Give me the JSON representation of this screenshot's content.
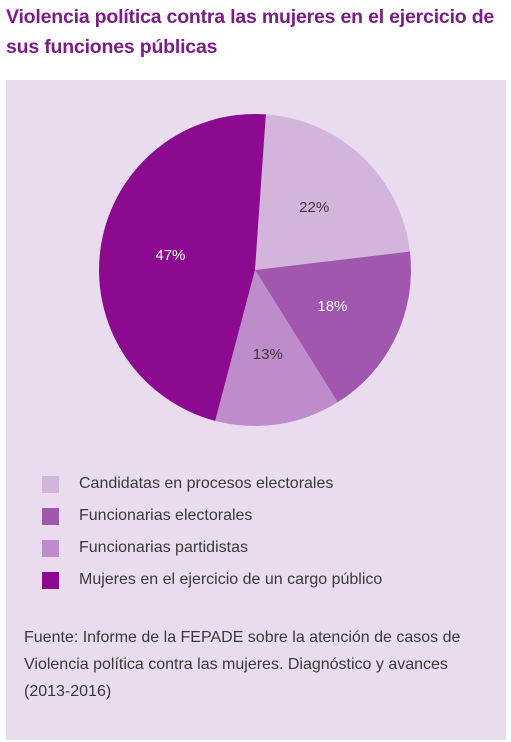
{
  "title": "Violencia política contra las mujeres en el ejercicio de sus funciones públicas",
  "chart_data": {
    "type": "pie",
    "title": "Violencia política contra las mujeres en el ejercicio de sus funciones públicas",
    "legend_position": "bottom",
    "slices": [
      {
        "label": "Candidatas en procesos electorales",
        "value": 22,
        "value_label": "22%",
        "color": "#d3b5dc",
        "text_color": "#3a3a3a"
      },
      {
        "label": "Funcionarias electorales",
        "value": 18,
        "value_label": "18%",
        "color": "#a057ad",
        "text_color": "#ffffff"
      },
      {
        "label": "Funcionarias partidistas",
        "value": 13,
        "value_label": "13%",
        "color": "#bf8ccb",
        "text_color": "#3a3a3a"
      },
      {
        "label": "Mujeres en el ejercicio de un cargo público",
        "value": 47,
        "value_label": "47%",
        "color": "#8b0a8f",
        "text_color": "#ffffff"
      }
    ]
  },
  "source": "Fuente: Informe de la FEPADE sobre la atención de casos de Violencia política contra las mujeres. Diagnóstico y avances (2013-2016)"
}
